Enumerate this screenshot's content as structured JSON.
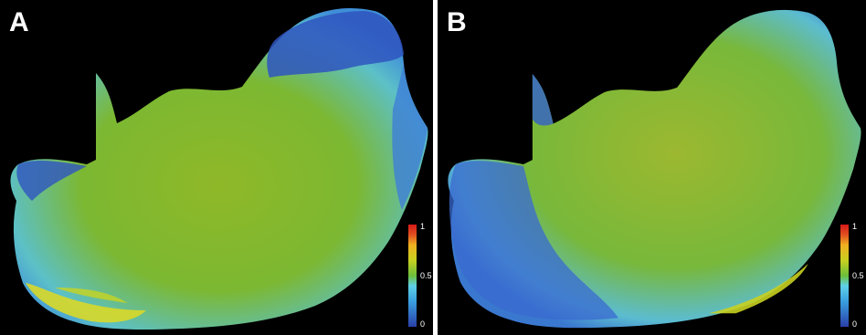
{
  "panels": [
    {
      "label": "A",
      "colorbar": {
        "ticks": [
          "1",
          "0.5",
          "0"
        ]
      }
    },
    {
      "label": "B",
      "colorbar": {
        "ticks": [
          "1",
          "0.5",
          "0"
        ]
      }
    }
  ],
  "colorbar_range": [
    0,
    1
  ],
  "colorbar_colors": [
    "#2a3fa8",
    "#3aa0e0",
    "#5fd0e8",
    "#6cbf3a",
    "#c8d020",
    "#f0b020",
    "#e05020",
    "#d81818"
  ],
  "background_color": "#000000"
}
